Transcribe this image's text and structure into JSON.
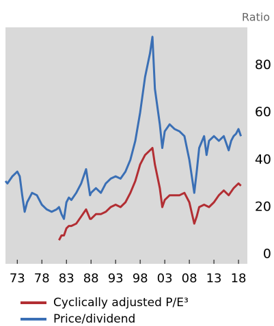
{
  "chart_data": {
    "type": "line",
    "y_label": "Ratio",
    "xlim": [
      1970.6,
      2019.8
    ],
    "ylim": [
      -4,
      96
    ],
    "xticks": [
      {
        "value": 1973,
        "label": "73"
      },
      {
        "value": 1978,
        "label": "78"
      },
      {
        "value": 1983,
        "label": "83"
      },
      {
        "value": 1988,
        "label": "88"
      },
      {
        "value": 1993,
        "label": "93"
      },
      {
        "value": 1998,
        "label": "98"
      },
      {
        "value": 2003,
        "label": "03"
      },
      {
        "value": 2008,
        "label": "08"
      },
      {
        "value": 2013,
        "label": "13"
      },
      {
        "value": 2018,
        "label": "18"
      }
    ],
    "yticks": [
      0,
      20,
      40,
      60,
      80
    ],
    "background": "#d9d9d9",
    "series": [
      {
        "name": "Cyclically adjusted P/E³",
        "color": "#b22e33",
        "x": [
          1981.5,
          1982,
          1982.5,
          1983,
          1983.5,
          1984,
          1985,
          1986,
          1987,
          1987.8,
          1988,
          1989,
          1990,
          1991,
          1992,
          1993,
          1994,
          1995,
          1996,
          1997,
          1998,
          1999,
          2000,
          2000.5,
          2001,
          2002,
          2002.5,
          2003,
          2004,
          2005,
          2006,
          2007,
          2008,
          2009,
          2009.5,
          2010,
          2011,
          2012,
          2013,
          2014,
          2015,
          2016,
          2017,
          2018,
          2018.5
        ],
        "values": [
          6,
          8,
          8,
          11,
          12,
          12,
          13,
          16,
          19,
          15,
          15,
          17,
          17,
          18,
          20,
          21,
          20,
          22,
          26,
          31,
          38,
          42,
          44,
          45,
          38,
          28,
          20,
          23,
          25,
          25,
          25,
          26,
          22,
          13,
          16,
          20,
          21,
          20,
          22,
          25,
          27,
          25,
          28,
          30,
          29
        ]
      },
      {
        "name": "Price/dividend",
        "color": "#3a6fb5",
        "x": [
          1970.6,
          1971,
          1972,
          1973,
          1973.5,
          1974,
          1974.5,
          1975,
          1976,
          1977,
          1978,
          1979,
          1980,
          1981,
          1981.5,
          1982,
          1982.5,
          1983,
          1983.5,
          1984,
          1985,
          1986,
          1987,
          1987.8,
          1988,
          1989,
          1990,
          1991,
          1992,
          1993,
          1994,
          1995,
          1996,
          1997,
          1998,
          1999,
          2000,
          2000.5,
          2001,
          2002,
          2002.5,
          2003,
          2004,
          2005,
          2006,
          2007,
          2008,
          2009,
          2009.5,
          2010,
          2011,
          2011.5,
          2012,
          2013,
          2014,
          2015,
          2016,
          2016.5,
          2017,
          2017.5,
          2018,
          2018.5
        ],
        "values": [
          31,
          30,
          33,
          35,
          33,
          25,
          18,
          22,
          26,
          25,
          21,
          19,
          18,
          19,
          20,
          17,
          15,
          22,
          24,
          23,
          26,
          30,
          36,
          25,
          26,
          28,
          26,
          30,
          32,
          33,
          32,
          35,
          40,
          48,
          60,
          75,
          85,
          92,
          70,
          55,
          45,
          52,
          55,
          53,
          52,
          50,
          40,
          26,
          35,
          45,
          50,
          42,
          48,
          50,
          48,
          50,
          44,
          48,
          50,
          51,
          53,
          50
        ]
      }
    ]
  }
}
